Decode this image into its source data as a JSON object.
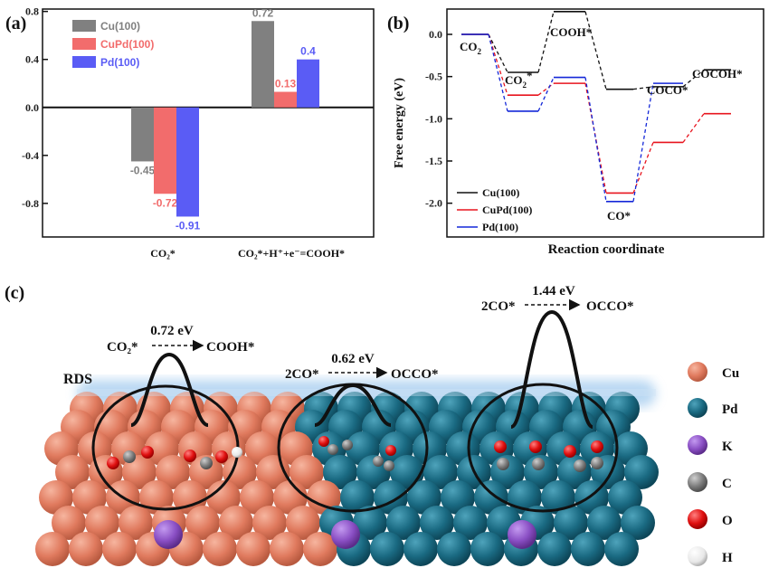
{
  "panel_a": {
    "label": "(a)",
    "categories": [
      "CO₂*",
      "CO₂*+H⁺+e⁻=COOH*"
    ],
    "ytick_labels": [
      "0.8",
      "0.4",
      "0.0",
      "-0.4",
      "-0.8"
    ],
    "legend": [
      "Cu(100)",
      "CuPd(100)",
      "Pd(100)"
    ]
  },
  "panel_b": {
    "label": "(b)",
    "ylabel": "Free energy (eV)",
    "xlabel": "Reaction coordinate",
    "ytick_labels": [
      "0.0",
      "-0.5",
      "-1.0",
      "-1.5",
      "-2.0"
    ],
    "state_labels": [
      "CO",
      "2",
      "CO",
      "2",
      "*",
      "COOH*",
      "CO*",
      "COCO*",
      "COCOH*"
    ],
    "legend": [
      "Cu(100)",
      "CuPd(100)",
      "Pd(100)"
    ]
  },
  "panel_c": {
    "label": "(c)",
    "rds_label": "RDS",
    "barriers": [
      {
        "energy": "0.72 eV",
        "reactant": "CO₂*",
        "product": "COOH*"
      },
      {
        "energy": "0.62 eV",
        "reactant": "2CO*",
        "product": "OCCO*"
      },
      {
        "energy": "1.44 eV",
        "reactant": "2CO*",
        "product": "OCCO*"
      }
    ],
    "legend": [
      {
        "label": "Cu",
        "color": "#e8836a"
      },
      {
        "label": "Pd",
        "color": "#1f6f87"
      },
      {
        "label": "K",
        "color": "#8a4fc4"
      },
      {
        "label": "C",
        "color": "#8a8a8a"
      },
      {
        "label": "O",
        "color": "#e01010"
      },
      {
        "label": "H",
        "color": "#f0f0f0"
      }
    ]
  },
  "colors": {
    "cu": "#808080",
    "cupd": "#f26c6c",
    "pd": "#5a5cf5"
  },
  "chart_data": [
    {
      "type": "bar",
      "categories": [
        "CO₂*",
        "CO₂*+H⁺+e⁻=COOH*"
      ],
      "series": [
        {
          "name": "Cu(100)",
          "values": [
            -0.45,
            0.72
          ],
          "labels": [
            "-0.45",
            "0.72"
          ]
        },
        {
          "name": "CuPd(100)",
          "values": [
            -0.72,
            0.13
          ],
          "labels": [
            "-0.72",
            "0.13"
          ]
        },
        {
          "name": "Pd(100)",
          "values": [
            -0.91,
            0.4
          ],
          "labels": [
            "-0.91",
            "0.4"
          ]
        }
      ],
      "ylim": [
        -1.08,
        0.82
      ],
      "legend_position": "top-left"
    },
    {
      "type": "line",
      "ylabel": "Free energy (eV)",
      "xlabel": "Reaction coordinate",
      "states": [
        "CO2",
        "CO2*",
        "COOH*",
        "CO*",
        "COCO*",
        "COCOH*"
      ],
      "series": [
        {
          "name": "Cu(100)",
          "values": [
            0.0,
            -0.45,
            0.27,
            -0.65,
            -0.62,
            -0.42
          ]
        },
        {
          "name": "CuPd(100)",
          "values": [
            0.0,
            -0.72,
            -0.58,
            -1.88,
            -1.28,
            -0.94
          ]
        },
        {
          "name": "Pd(100)",
          "values": [
            0.0,
            -0.91,
            -0.51,
            -1.98,
            -0.58,
            null
          ]
        }
      ],
      "ylim": [
        -2.4,
        0.3
      ],
      "legend_position": "bottom-left"
    }
  ]
}
